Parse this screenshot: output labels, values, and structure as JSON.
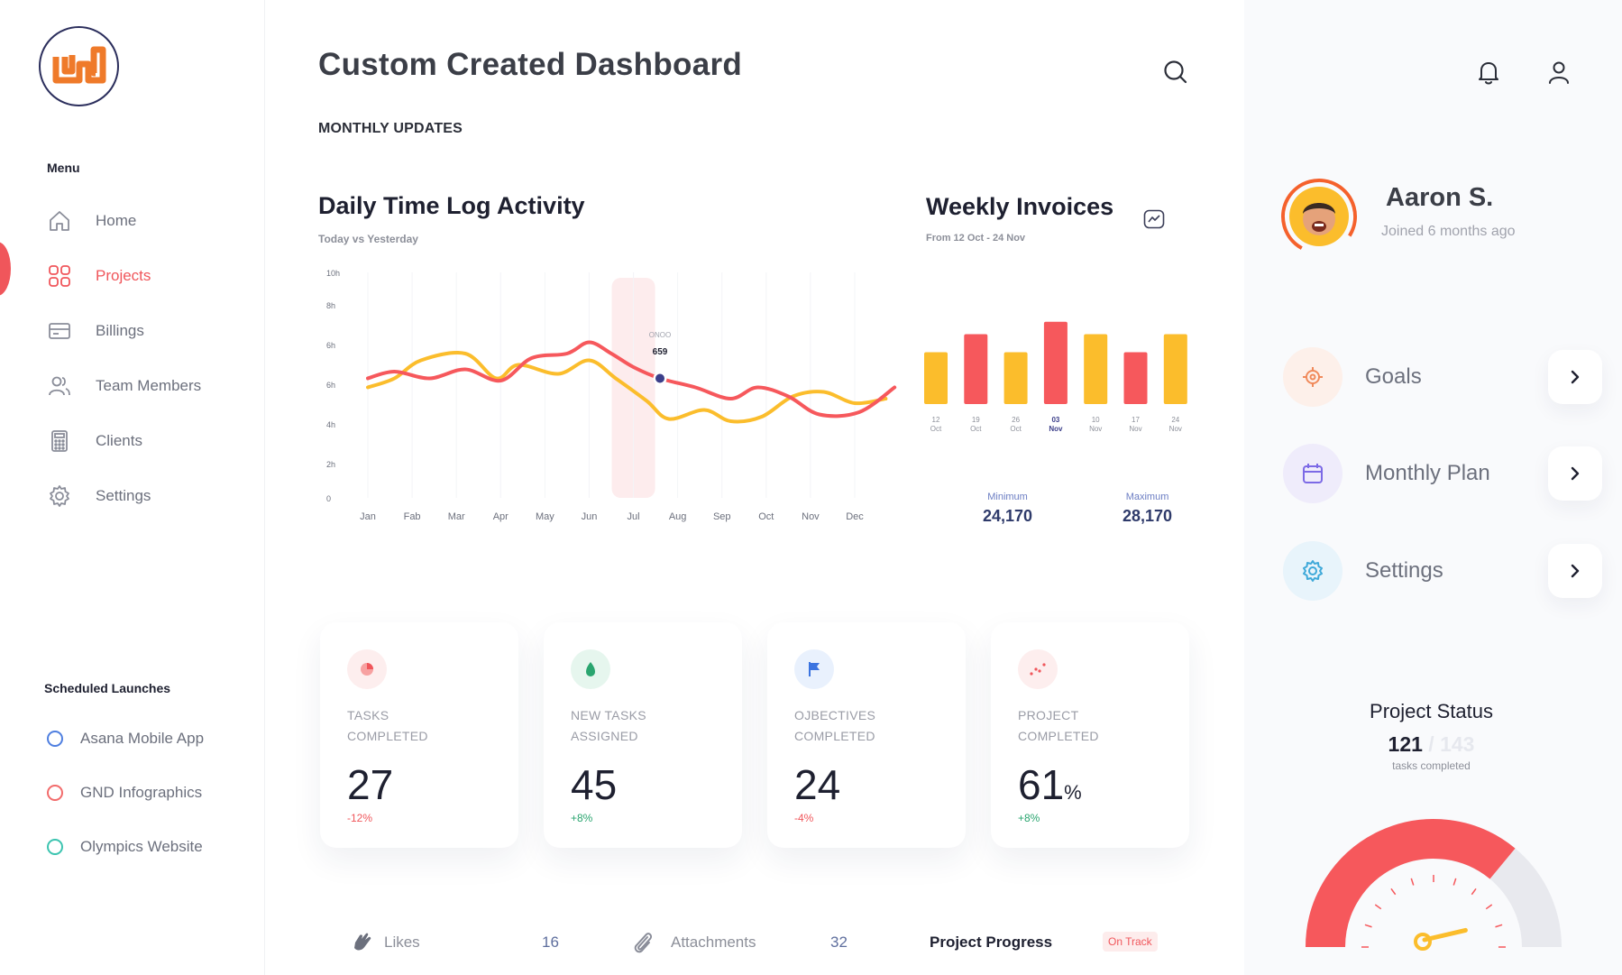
{
  "sidebar": {
    "menu_heading": "Menu",
    "items": [
      {
        "label": "Home",
        "icon": "home-icon"
      },
      {
        "label": "Projects",
        "icon": "grid-icon",
        "active": true
      },
      {
        "label": "Billings",
        "icon": "card-icon"
      },
      {
        "label": "Team Members",
        "icon": "users-icon"
      },
      {
        "label": "Clients",
        "icon": "calculator-icon"
      },
      {
        "label": "Settings",
        "icon": "gear-icon"
      }
    ],
    "scheduled_heading": "Scheduled Launches",
    "scheduled": [
      {
        "label": "Asana Mobile App",
        "color": "#4f7fe0"
      },
      {
        "label": "GND Infographics",
        "color": "#f26b6b"
      },
      {
        "label": "Olympics Website",
        "color": "#3cc4b0"
      }
    ]
  },
  "header": {
    "title": "Custom Created Dashboard",
    "section": "MONTHLY UPDATES"
  },
  "daily_chart": {
    "title": "Daily Time Log Activity",
    "subtitle": "Today vs Yesterday",
    "tooltip_label": "ONOO",
    "tooltip_value": "659"
  },
  "weekly_invoices": {
    "title": "Weekly Invoices",
    "subtitle": "From 12 Oct - 24 Nov",
    "minimum_label": "Minimum",
    "minimum_value": "24,170",
    "maximum_label": "Maximum",
    "maximum_value": "28,170"
  },
  "stats": [
    {
      "label_line1": "TASKS",
      "label_line2": "COMPLETED",
      "value": "27",
      "unit": "",
      "change": "-12%",
      "change_color": "#f0565b",
      "badge_color": "#fdeeee",
      "icon": "pie-icon"
    },
    {
      "label_line1": "NEW TASKS",
      "label_line2": "ASSIGNED",
      "value": "45",
      "unit": "",
      "change": "+8%",
      "change_color": "#2aa56f",
      "badge_color": "#e6f6ee",
      "icon": "drop-icon"
    },
    {
      "label_line1": "OJBECTIVES",
      "label_line2": "COMPLETED",
      "value": "24",
      "unit": "",
      "change": "-4%",
      "change_color": "#f0565b",
      "badge_color": "#e9f1fd",
      "icon": "flag-icon"
    },
    {
      "label_line1": "PROJECT",
      "label_line2": "COMPLETED",
      "value": "61",
      "unit": "%",
      "change": "+8%",
      "change_color": "#2aa56f",
      "badge_color": "#fdeeee",
      "icon": "scatter-icon"
    }
  ],
  "bottom": {
    "likes_label": "Likes",
    "likes_count": "16",
    "attachments_label": "Attachments",
    "attachments_count": "32",
    "progress_label": "Project Progress",
    "progress_badge": "On Track"
  },
  "profile": {
    "name": "Aaron S.",
    "joined": "Joined 6 months ago"
  },
  "side_menu": [
    {
      "label": "Goals",
      "icon": "target-icon",
      "bg": "#fdf0ea",
      "fg": "#f08a5b"
    },
    {
      "label": "Monthly Plan",
      "icon": "calendar-icon",
      "bg": "#efecfb",
      "fg": "#7c6ae6"
    },
    {
      "label": "Settings",
      "icon": "gear-icon",
      "bg": "#e8f4fb",
      "fg": "#3fa9d9"
    }
  ],
  "project_status": {
    "title": "Project Status",
    "completed": "121",
    "separator": "/",
    "total": "143",
    "subtitle": "tasks completed",
    "fraction": 0.846
  },
  "chart_data": [
    {
      "type": "line",
      "title": "Daily Time Log Activity",
      "subtitle": "Today vs Yesterday",
      "x": [
        "Jan",
        "Fab",
        "Mar",
        "Apr",
        "May",
        "Jun",
        "Jul",
        "Aug",
        "Sep",
        "Oct",
        "Nov",
        "Dec"
      ],
      "y_ticks": [
        "10h",
        "8h",
        "6h",
        "6h",
        "4h",
        "2h",
        "0"
      ],
      "ylim": [
        0,
        10
      ],
      "series": [
        {
          "color": "#f6585c",
          "points": [
            [
              0,
              5.3
            ],
            [
              0.6,
              5.6
            ],
            [
              1.4,
              5.3
            ],
            [
              2.2,
              5.7
            ],
            [
              3.0,
              5.2
            ],
            [
              3.7,
              6.2
            ],
            [
              4.5,
              6.4
            ],
            [
              5.0,
              6.9
            ],
            [
              5.5,
              6.4
            ],
            [
              6.0,
              5.8
            ],
            [
              6.6,
              5.3
            ],
            [
              7.4,
              4.9
            ],
            [
              8.2,
              4.4
            ],
            [
              8.8,
              4.9
            ],
            [
              9.5,
              4.5
            ],
            [
              10.2,
              3.7
            ],
            [
              11.1,
              3.8
            ],
            [
              11.9,
              4.9
            ]
          ],
          "tooltip_index": 10
        },
        {
          "color": "#fbbd2c",
          "points": [
            [
              0,
              4.9
            ],
            [
              0.6,
              5.3
            ],
            [
              1.2,
              6.1
            ],
            [
              2.2,
              6.4
            ],
            [
              2.9,
              5.3
            ],
            [
              3.4,
              5.9
            ],
            [
              4.3,
              5.5
            ],
            [
              5.0,
              6.1
            ],
            [
              5.6,
              5.3
            ],
            [
              6.3,
              4.3
            ],
            [
              6.8,
              3.5
            ],
            [
              7.6,
              3.9
            ],
            [
              8.2,
              3.4
            ],
            [
              8.9,
              3.6
            ],
            [
              9.6,
              4.5
            ],
            [
              10.3,
              4.7
            ],
            [
              11.0,
              4.2
            ],
            [
              11.7,
              4.4
            ]
          ]
        }
      ],
      "highlight": "Jul",
      "tooltip": {
        "label": "ONOO",
        "value": "659"
      }
    },
    {
      "type": "bar",
      "title": "Weekly Invoices",
      "subtitle": "From 12 Oct - 24 Nov",
      "categories": [
        [
          "12",
          "Oct"
        ],
        [
          "19",
          "Oct"
        ],
        [
          "26",
          "Oct"
        ],
        [
          "03",
          "Nov"
        ],
        [
          "10",
          "Nov"
        ],
        [
          "17",
          "Nov"
        ],
        [
          "24",
          "Nov"
        ]
      ],
      "values": [
        24.6,
        26.2,
        24.6,
        27.3,
        26.2,
        24.6,
        26.2
      ],
      "colors": [
        "#fbbd2c",
        "#f6585c",
        "#fbbd2c",
        "#f6585c",
        "#fbbd2c",
        "#f6585c",
        "#fbbd2c"
      ],
      "highlight_index": 3,
      "minimum": "24,170",
      "maximum": "28,170"
    }
  ]
}
